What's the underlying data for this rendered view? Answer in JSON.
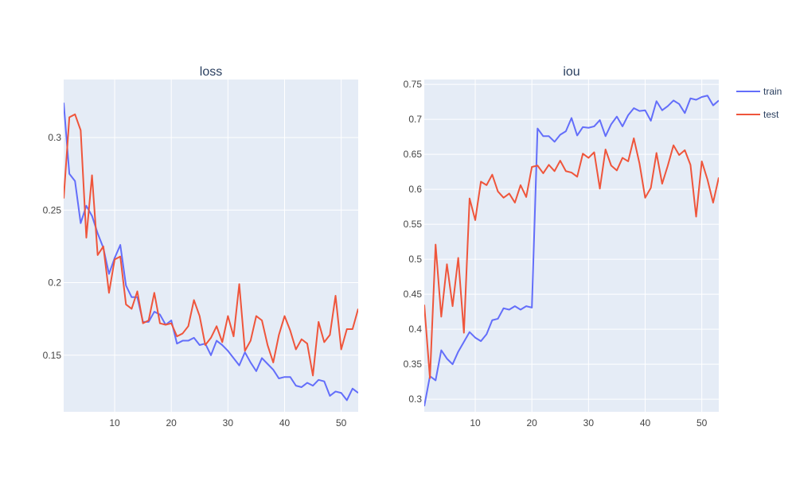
{
  "chart_data": [
    {
      "type": "line",
      "title": "loss",
      "xlim": [
        1,
        53
      ],
      "ylim": [
        0.111,
        0.34
      ],
      "xticks": [
        10,
        20,
        30,
        40,
        50
      ],
      "yticks": [
        0.15,
        0.2,
        0.25,
        0.3
      ],
      "ytick_labels": [
        "0.15",
        "0.2",
        "0.25",
        "0.3"
      ],
      "grid": true,
      "series": [
        {
          "name": "train",
          "color": "#636efa",
          "x": [
            1,
            2,
            3,
            4,
            5,
            6,
            7,
            8,
            9,
            10,
            11,
            12,
            13,
            14,
            15,
            16,
            17,
            18,
            19,
            20,
            21,
            22,
            23,
            24,
            25,
            26,
            27,
            28,
            29,
            30,
            31,
            32,
            33,
            34,
            35,
            36,
            37,
            38,
            39,
            40,
            41,
            42,
            43,
            44,
            45,
            46,
            47,
            48,
            49,
            50,
            51,
            52,
            53
          ],
          "y": [
            0.324,
            0.275,
            0.27,
            0.241,
            0.253,
            0.246,
            0.234,
            0.224,
            0.206,
            0.217,
            0.226,
            0.198,
            0.19,
            0.19,
            0.173,
            0.173,
            0.18,
            0.178,
            0.171,
            0.174,
            0.158,
            0.16,
            0.16,
            0.162,
            0.157,
            0.158,
            0.15,
            0.16,
            0.157,
            0.153,
            0.148,
            0.143,
            0.152,
            0.145,
            0.139,
            0.148,
            0.144,
            0.14,
            0.134,
            0.135,
            0.135,
            0.129,
            0.128,
            0.131,
            0.129,
            0.133,
            0.132,
            0.122,
            0.125,
            0.124,
            0.119,
            0.127,
            0.124
          ]
        },
        {
          "name": "test",
          "color": "#ef553b",
          "x": [
            1,
            2,
            3,
            4,
            5,
            6,
            7,
            8,
            9,
            10,
            11,
            12,
            13,
            14,
            15,
            16,
            17,
            18,
            19,
            20,
            21,
            22,
            23,
            24,
            25,
            26,
            27,
            28,
            29,
            30,
            31,
            32,
            33,
            34,
            35,
            36,
            37,
            38,
            39,
            40,
            41,
            42,
            43,
            44,
            45,
            46,
            47,
            48,
            49,
            50,
            51,
            52,
            53
          ],
          "y": [
            0.258,
            0.314,
            0.316,
            0.305,
            0.231,
            0.274,
            0.219,
            0.225,
            0.193,
            0.216,
            0.218,
            0.185,
            0.182,
            0.194,
            0.172,
            0.174,
            0.193,
            0.172,
            0.171,
            0.172,
            0.163,
            0.165,
            0.17,
            0.188,
            0.177,
            0.157,
            0.162,
            0.17,
            0.159,
            0.177,
            0.163,
            0.199,
            0.153,
            0.16,
            0.177,
            0.174,
            0.157,
            0.145,
            0.164,
            0.177,
            0.167,
            0.154,
            0.161,
            0.158,
            0.136,
            0.173,
            0.159,
            0.164,
            0.191,
            0.154,
            0.168,
            0.168,
            0.182
          ]
        }
      ]
    },
    {
      "type": "line",
      "title": "iou",
      "xlim": [
        1,
        53
      ],
      "ylim": [
        0.282,
        0.757
      ],
      "xticks": [
        10,
        20,
        30,
        40,
        50
      ],
      "yticks": [
        0.3,
        0.35,
        0.4,
        0.45,
        0.5,
        0.55,
        0.6,
        0.65,
        0.7,
        0.75
      ],
      "ytick_labels": [
        "0.3",
        "0.35",
        "0.4",
        "0.45",
        "0.5",
        "0.55",
        "0.6",
        "0.65",
        "0.7",
        "0.75"
      ],
      "grid": true,
      "series": [
        {
          "name": "train",
          "color": "#636efa",
          "x": [
            1,
            2,
            3,
            4,
            5,
            6,
            7,
            8,
            9,
            10,
            11,
            12,
            13,
            14,
            15,
            16,
            17,
            18,
            19,
            20,
            21,
            22,
            23,
            24,
            25,
            26,
            27,
            28,
            29,
            30,
            31,
            32,
            33,
            34,
            35,
            36,
            37,
            38,
            39,
            40,
            41,
            42,
            43,
            44,
            45,
            46,
            47,
            48,
            49,
            50,
            51,
            52,
            53
          ],
          "y": [
            0.29,
            0.333,
            0.327,
            0.37,
            0.358,
            0.35,
            0.368,
            0.382,
            0.396,
            0.388,
            0.383,
            0.393,
            0.413,
            0.415,
            0.43,
            0.428,
            0.433,
            0.428,
            0.433,
            0.431,
            0.687,
            0.676,
            0.676,
            0.668,
            0.678,
            0.683,
            0.702,
            0.677,
            0.689,
            0.688,
            0.69,
            0.699,
            0.676,
            0.693,
            0.704,
            0.69,
            0.706,
            0.716,
            0.712,
            0.713,
            0.698,
            0.726,
            0.713,
            0.719,
            0.727,
            0.722,
            0.709,
            0.73,
            0.728,
            0.732,
            0.734,
            0.72,
            0.727
          ]
        },
        {
          "name": "test",
          "color": "#ef553b",
          "x": [
            1,
            2,
            3,
            4,
            5,
            6,
            7,
            8,
            9,
            10,
            11,
            12,
            13,
            14,
            15,
            16,
            17,
            18,
            19,
            20,
            21,
            22,
            23,
            24,
            25,
            26,
            27,
            28,
            29,
            30,
            31,
            32,
            33,
            34,
            35,
            36,
            37,
            38,
            39,
            40,
            41,
            42,
            43,
            44,
            45,
            46,
            47,
            48,
            49,
            50,
            51,
            52,
            53
          ],
          "y": [
            0.435,
            0.33,
            0.521,
            0.418,
            0.493,
            0.433,
            0.502,
            0.395,
            0.587,
            0.556,
            0.611,
            0.606,
            0.621,
            0.597,
            0.588,
            0.594,
            0.581,
            0.606,
            0.589,
            0.632,
            0.634,
            0.623,
            0.635,
            0.626,
            0.641,
            0.626,
            0.624,
            0.618,
            0.651,
            0.645,
            0.653,
            0.601,
            0.657,
            0.634,
            0.627,
            0.645,
            0.64,
            0.673,
            0.637,
            0.588,
            0.602,
            0.652,
            0.608,
            0.634,
            0.663,
            0.649,
            0.656,
            0.635,
            0.561,
            0.64,
            0.614,
            0.581,
            0.617
          ]
        }
      ]
    }
  ],
  "legend": {
    "position": "right",
    "items": [
      {
        "label": "train",
        "color": "#636efa"
      },
      {
        "label": "test",
        "color": "#ef553b"
      }
    ]
  }
}
